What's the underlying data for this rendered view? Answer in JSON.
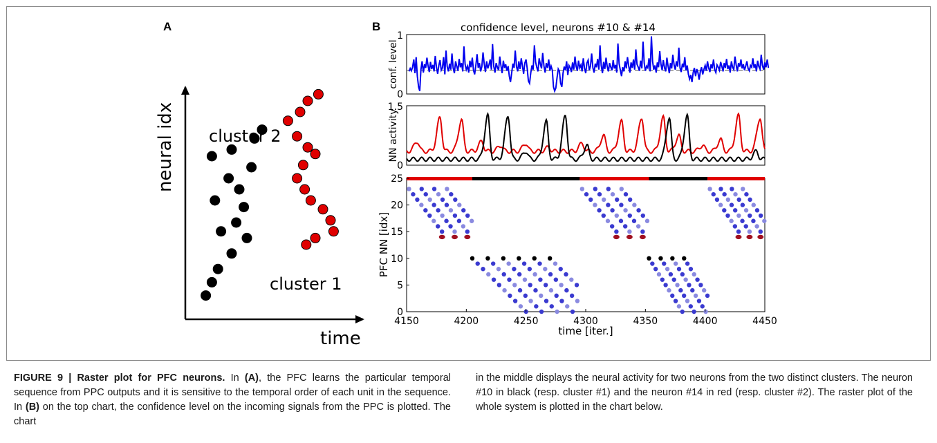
{
  "panel_a": {
    "label": "A",
    "xlabel": "time",
    "ylabel": "neural idx",
    "cluster1_label": "cluster 1",
    "cluster2_label": "cluster 2",
    "cluster1_color": "#000000",
    "cluster2_color": "#e00000",
    "cluster1_points": [
      [
        0.08,
        0.07
      ],
      [
        0.12,
        0.13
      ],
      [
        0.16,
        0.19
      ],
      [
        0.25,
        0.26
      ],
      [
        0.18,
        0.36
      ],
      [
        0.35,
        0.33
      ],
      [
        0.28,
        0.4
      ],
      [
        0.33,
        0.47
      ],
      [
        0.14,
        0.5
      ],
      [
        0.23,
        0.6
      ],
      [
        0.3,
        0.55
      ],
      [
        0.38,
        0.65
      ],
      [
        0.12,
        0.7
      ],
      [
        0.25,
        0.73
      ],
      [
        0.4,
        0.78
      ],
      [
        0.45,
        0.82
      ]
    ],
    "cluster2_points": [
      [
        0.62,
        0.86
      ],
      [
        0.7,
        0.9
      ],
      [
        0.75,
        0.95
      ],
      [
        0.82,
        0.98
      ],
      [
        0.68,
        0.79
      ],
      [
        0.75,
        0.74
      ],
      [
        0.8,
        0.71
      ],
      [
        0.72,
        0.66
      ],
      [
        0.68,
        0.6
      ],
      [
        0.73,
        0.55
      ],
      [
        0.77,
        0.5
      ],
      [
        0.85,
        0.46
      ],
      [
        0.9,
        0.41
      ],
      [
        0.92,
        0.36
      ],
      [
        0.8,
        0.33
      ],
      [
        0.74,
        0.3
      ]
    ]
  },
  "panel_b": {
    "label": "B",
    "title": "confidence level, neurons #10 & #14"
  },
  "chart_data": [
    {
      "type": "line",
      "ylabel": "conf. level",
      "xlim": [
        4150,
        4450
      ],
      "ylim": [
        0,
        1
      ],
      "yticks": [
        "0",
        "1"
      ],
      "reference_line": 0.4,
      "series": [
        {
          "color": "#0000ee",
          "x_start": 4152,
          "x_step": 1,
          "values": [
            0.38,
            0.43,
            0.39,
            0.45,
            0.58,
            0.35,
            0.62,
            0.3,
            0.12,
            0.05,
            0.41,
            0.55,
            0.36,
            0.5,
            0.44,
            0.61,
            0.47,
            0.37,
            0.54,
            0.42,
            0.49,
            0.38,
            0.64,
            0.45,
            0.34,
            0.48,
            0.57,
            0.4,
            0.44,
            0.62,
            0.33,
            0.73,
            0.46,
            0.38,
            0.51,
            0.41,
            0.68,
            0.44,
            0.35,
            0.55,
            0.47,
            0.39,
            0.59,
            0.45,
            0.52,
            0.38,
            0.8,
            0.5,
            0.41,
            0.47,
            0.36,
            0.56,
            0.45,
            0.61,
            0.4,
            0.33,
            0.48,
            0.67,
            0.44,
            0.52,
            0.38,
            0.46,
            0.7,
            0.51,
            0.37,
            0.55,
            0.43,
            0.49,
            0.58,
            0.41,
            0.84,
            0.47,
            0.36,
            0.52,
            0.45,
            0.4,
            0.63,
            0.48,
            0.35,
            0.56,
            0.44,
            0.5,
            0.39,
            0.47,
            0.3,
            0.2,
            0.35,
            0.51,
            0.44,
            0.73,
            0.46,
            0.38,
            0.55,
            0.42,
            0.6,
            0.47,
            0.34,
            0.52,
            0.58,
            0.43,
            0.22,
            0.18,
            0.36,
            0.48,
            0.41,
            0.82,
            0.54,
            0.45,
            0.38,
            0.6,
            0.5,
            0.43,
            0.69,
            0.47,
            0.36,
            0.52,
            0.44,
            0.58,
            0.39,
            0.47,
            0.4,
            0.12,
            0.05,
            0.1,
            0.28,
            0.42,
            0.38,
            0.18,
            0.12,
            0.35,
            0.46,
            0.4,
            0.55,
            0.32,
            0.48,
            0.44,
            0.37,
            0.53,
            0.41,
            0.63,
            0.46,
            0.39,
            0.56,
            0.44,
            0.49,
            0.38,
            0.6,
            0.43,
            0.35,
            0.52,
            0.57,
            0.4,
            0.47,
            0.68,
            0.44,
            0.36,
            0.51,
            0.45,
            0.59,
            0.41,
            0.82,
            0.48,
            0.35,
            0.54,
            0.42,
            0.61,
            0.46,
            0.38,
            0.52,
            0.45,
            0.4,
            0.57,
            0.43,
            0.49,
            0.36,
            0.85,
            0.51,
            0.4,
            0.3,
            0.45,
            0.38,
            0.55,
            0.43,
            0.62,
            0.47,
            0.36,
            0.53,
            0.44,
            0.58,
            0.41,
            0.75,
            0.5,
            0.45,
            0.39,
            0.56,
            0.43,
            0.88,
            0.52,
            0.39,
            0.47,
            0.44,
            0.6,
            0.38,
            0.97,
            0.55,
            0.41,
            0.48,
            0.36,
            0.53,
            0.45,
            0.72,
            0.5,
            0.4,
            0.57,
            0.44,
            0.38,
            0.61,
            0.47,
            0.35,
            0.52,
            0.43,
            0.66,
            0.49,
            0.41,
            0.55,
            0.46,
            0.78,
            0.44,
            0.37,
            0.51,
            0.45,
            0.62,
            0.4,
            0.48,
            0.33,
            0.25,
            0.32,
            0.2,
            0.36,
            0.44,
            0.3,
            0.42,
            0.36,
            0.24,
            0.38,
            0.45,
            0.33,
            0.41,
            0.48,
            0.39,
            0.55,
            0.44,
            0.37,
            0.5,
            0.43,
            0.58,
            0.41,
            0.36,
            0.49,
            0.45,
            0.4,
            0.54,
            0.47,
            0.38,
            0.52,
            0.44,
            0.59,
            0.42,
            0.48,
            0.36,
            0.55,
            0.45,
            0.41,
            0.63,
            0.49,
            0.38,
            0.52,
            0.46,
            0.58,
            0.43,
            0.5,
            0.4,
            0.47,
            0.55,
            0.43,
            0.39,
            0.48,
            0.45,
            0.6,
            0.44,
            0.5,
            0.38,
            0.56,
            0.46,
            0.42,
            0.66,
            0.48,
            0.41,
            0.53,
            0.45,
            0.58,
            0.44
          ]
        }
      ]
    },
    {
      "type": "line",
      "ylabel": "NN activity",
      "xlim": [
        4150,
        4450
      ],
      "ylim": [
        0,
        1.5
      ],
      "yticks": [
        "0",
        "1.5"
      ],
      "series": [
        {
          "color": "#e00000",
          "baseline": 0.35,
          "peaks": [
            [
              4159,
              0.6
            ],
            [
              4178,
              1.2
            ],
            [
              4196,
              1.15
            ],
            [
              4213,
              0.6
            ],
            [
              4229,
              0.5
            ],
            [
              4250,
              0.55
            ],
            [
              4269,
              0.45
            ],
            [
              4297,
              0.55
            ],
            [
              4315,
              0.75
            ],
            [
              4330,
              1.1
            ],
            [
              4347,
              1.2
            ],
            [
              4365,
              1.2
            ],
            [
              4378,
              0.75
            ],
            [
              4398,
              0.5
            ],
            [
              4413,
              0.65
            ],
            [
              4428,
              1.25
            ],
            [
              4446,
              1.2
            ]
          ]
        },
        {
          "color": "#000000",
          "baseline": 0.15,
          "peaks": [
            [
              4218,
              1.25
            ],
            [
              4235,
              1.25
            ],
            [
              4250,
              0.35
            ],
            [
              4267,
              1.1
            ],
            [
              4283,
              1.25
            ],
            [
              4301,
              0.5
            ],
            [
              4370,
              1.2
            ],
            [
              4385,
              1.25
            ],
            [
              4443,
              0.35
            ]
          ]
        }
      ]
    },
    {
      "type": "scatter",
      "xlabel": "time [iter.]",
      "ylabel": "PFC NN [idx]",
      "xlim": [
        4150,
        4450
      ],
      "ylim": [
        0,
        25
      ],
      "xticks": [
        "4150",
        "4200",
        "4250",
        "4300",
        "4350",
        "4400",
        "4450"
      ],
      "yticks": [
        "0",
        "5",
        "10",
        "15",
        "20",
        "25"
      ],
      "point_colors": {
        "neuron": "#3a3ad0",
        "neuron_faded": "#8a8ae0",
        "neuron_10": "#000000",
        "neuron_14": "#a01020"
      },
      "state_bar": [
        {
          "start": 4150,
          "end": 4205,
          "color": "#e00000"
        },
        {
          "start": 4205,
          "end": 4295,
          "color": "#000000"
        },
        {
          "start": 4295,
          "end": 4353,
          "color": "#e00000"
        },
        {
          "start": 4353,
          "end": 4402,
          "color": "#000000"
        },
        {
          "start": 4402,
          "end": 4450,
          "color": "#e00000"
        }
      ],
      "sequences": [
        {
          "x_start": 4152,
          "x_end": 4205,
          "y_from": 23,
          "y_to": 15,
          "phases": 4,
          "type": "upper"
        },
        {
          "x_start": 4205,
          "x_end": 4296,
          "y_from": 10,
          "y_to": 0,
          "phases": 6,
          "type": "lower"
        },
        {
          "x_start": 4297,
          "x_end": 4352,
          "y_from": 23,
          "y_to": 15,
          "phases": 4,
          "type": "upper"
        },
        {
          "x_start": 4353,
          "x_end": 4402,
          "y_from": 10,
          "y_to": 0,
          "phases": 4,
          "type": "lower"
        },
        {
          "x_start": 4404,
          "x_end": 4450,
          "y_from": 23,
          "y_to": 15,
          "phases": 4,
          "type": "upper"
        }
      ]
    }
  ],
  "caption": {
    "label": "FIGURE 9 | Raster plot for PFC neurons.",
    "p1_in": " In ",
    "ref_a": "(A)",
    "p1_rest": ", the PFC learns the particular temporal sequence from PPC outputs and it is sensitive to the temporal order of each unit in the sequence. In ",
    "ref_b": "(B)",
    "p2_rest": " on the top chart, the confidence level on the incoming signals from the PPC is plotted. The chart",
    "right_text": "in the middle displays the neural activity for two neurons from the two distinct clusters. The neuron #10 in black (resp. cluster #1) and the neuron #14 in red (resp. cluster #2). The raster plot of the whole system is plotted in the chart below."
  }
}
